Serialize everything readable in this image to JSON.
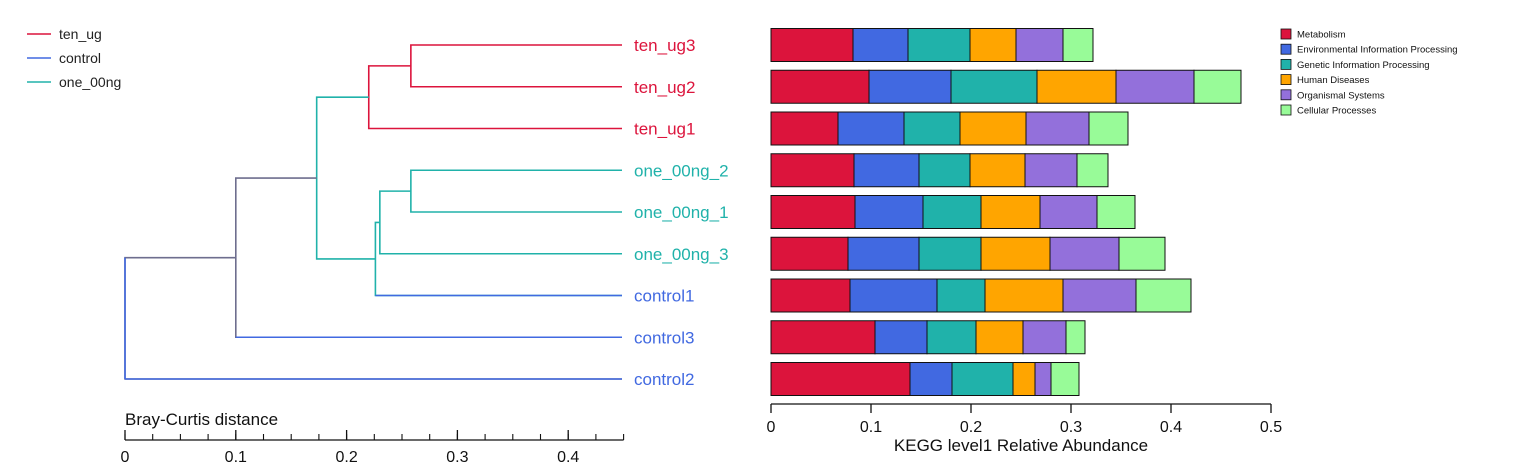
{
  "chart_data": [
    {
      "type": "dendrogram",
      "xlabel": "Bray-Curtis distance",
      "xlim": [
        0,
        0.45
      ],
      "major_ticks": [
        0,
        0.1,
        0.2,
        0.3,
        0.4
      ],
      "minor_step": 0.025,
      "legend": {
        "placement": "top-left",
        "entries": [
          {
            "name": "ten_ug",
            "color": "#dc143c"
          },
          {
            "name": "control",
            "color": "#4169e1"
          },
          {
            "name": "one_00ng",
            "color": "#20b2aa"
          }
        ]
      },
      "leaves": [
        {
          "label": "ten_ug3",
          "group": "ten_ug"
        },
        {
          "label": "ten_ug2",
          "group": "ten_ug"
        },
        {
          "label": "ten_ug1",
          "group": "ten_ug"
        },
        {
          "label": "one_00ng_2",
          "group": "one_00ng"
        },
        {
          "label": "one_00ng_1",
          "group": "one_00ng"
        },
        {
          "label": "one_00ng_3",
          "group": "one_00ng"
        },
        {
          "label": "control1",
          "group": "control"
        },
        {
          "label": "control3",
          "group": "control"
        },
        {
          "label": "control2",
          "group": "control"
        }
      ],
      "merges": [
        {
          "id": "m1",
          "left": 0,
          "right": 1,
          "height": 0.258,
          "color": "#dc143c"
        },
        {
          "id": "m2",
          "left": "m1",
          "right": 2,
          "height": 0.22,
          "color": "#dc143c"
        },
        {
          "id": "m3",
          "left": 3,
          "right": 4,
          "height": 0.258,
          "color": "#20b2aa"
        },
        {
          "id": "m4",
          "left": "m3",
          "right": 5,
          "height": 0.23,
          "color": "#20b2aa"
        },
        {
          "id": "m5",
          "left": "m4",
          "right": 6,
          "height": 0.226,
          "color": "#20b2aa"
        },
        {
          "id": "m6",
          "left": "m2",
          "right": "m5",
          "height": 0.173,
          "color": "#20b2aa"
        },
        {
          "id": "m7",
          "left": "m6",
          "right": 7,
          "height": 0.1,
          "color": "#6e6e8e"
        },
        {
          "id": "m8",
          "left": "m7",
          "right": 8,
          "height": 0.0,
          "color": "#6e6e8e"
        }
      ]
    },
    {
      "type": "bar",
      "orientation": "horizontal",
      "stacked": true,
      "xlabel": "KEGG level1 Relative Abundance",
      "xlim": [
        0,
        0.5
      ],
      "xticks": [
        0,
        0.1,
        0.2,
        0.3,
        0.4,
        0.5
      ],
      "categories": [
        "ten_ug3",
        "ten_ug2",
        "ten_ug1",
        "one_00ng_2",
        "one_00ng_1",
        "one_00ng_3",
        "control1",
        "control3",
        "control2"
      ],
      "legend": {
        "placement": "top-right"
      },
      "series": [
        {
          "name": "Metabolism",
          "color": "#dc143c",
          "values": [
            0.082,
            0.098,
            0.067,
            0.083,
            0.084,
            0.077,
            0.079,
            0.104,
            0.139
          ]
        },
        {
          "name": "Environmental Information Processing",
          "color": "#4169e1",
          "values": [
            0.055,
            0.082,
            0.066,
            0.065,
            0.068,
            0.071,
            0.087,
            0.052,
            0.042
          ]
        },
        {
          "name": "Genetic Information Processing",
          "color": "#20b2aa",
          "values": [
            0.062,
            0.086,
            0.056,
            0.051,
            0.058,
            0.062,
            0.048,
            0.049,
            0.061
          ]
        },
        {
          "name": "Human Diseases",
          "color": "#ffa500",
          "values": [
            0.046,
            0.079,
            0.066,
            0.055,
            0.059,
            0.069,
            0.078,
            0.047,
            0.022
          ]
        },
        {
          "name": "Organismal Systems",
          "color": "#9370db",
          "values": [
            0.047,
            0.078,
            0.063,
            0.052,
            0.057,
            0.069,
            0.073,
            0.043,
            0.016
          ]
        },
        {
          "name": "Cellular Processes",
          "color": "#98fb98",
          "values": [
            0.03,
            0.047,
            0.039,
            0.031,
            0.038,
            0.046,
            0.055,
            0.019,
            0.028
          ]
        }
      ]
    }
  ]
}
